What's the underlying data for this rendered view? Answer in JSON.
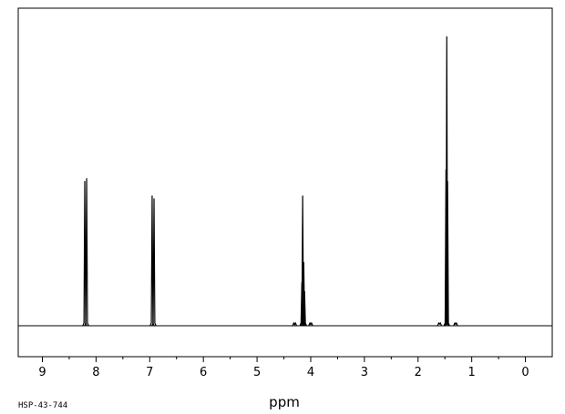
{
  "chart_data": {
    "type": "line",
    "title": "",
    "xlabel": "ppm",
    "ylabel": "",
    "x_reversed": true,
    "xlim": [
      9.45,
      -0.5
    ],
    "xticks": [
      "9",
      "8",
      "7",
      "6",
      "5",
      "4",
      "3",
      "2",
      "1",
      "0"
    ],
    "minor_tick_step": 0.5,
    "grid": false,
    "legend": "none",
    "baseline_intensity": 0,
    "ylim": [
      -0.11,
      1.0
    ],
    "peaks": [
      {
        "ppm": 8.21,
        "intensity": 0.5,
        "label": "doublet"
      },
      {
        "ppm": 8.175,
        "intensity": 0.51,
        "label": "doublet"
      },
      {
        "ppm": 6.955,
        "intensity": 0.45,
        "label": "doublet"
      },
      {
        "ppm": 6.92,
        "intensity": 0.44,
        "label": "doublet"
      },
      {
        "ppm": 4.165,
        "intensity": 0.15,
        "label": "quartet"
      },
      {
        "ppm": 4.15,
        "intensity": 0.45,
        "label": "quartet"
      },
      {
        "ppm": 4.13,
        "intensity": 0.22,
        "label": "quartet"
      },
      {
        "ppm": 4.115,
        "intensity": 0.12,
        "label": "quartet"
      },
      {
        "ppm": 1.48,
        "intensity": 0.54,
        "label": "triplet"
      },
      {
        "ppm": 1.465,
        "intensity": 1.0,
        "label": "triplet"
      },
      {
        "ppm": 1.45,
        "intensity": 0.5,
        "label": "triplet"
      }
    ],
    "impurity_peaks": [
      {
        "ppm": 4.3,
        "intensity": 0.004
      },
      {
        "ppm": 4.0,
        "intensity": 0.004
      },
      {
        "ppm": 1.6,
        "intensity": 0.006
      },
      {
        "ppm": 1.3,
        "intensity": 0.005
      }
    ],
    "colors": {
      "trace": "#000000",
      "frame": "#000000",
      "background": "#ffffff"
    }
  },
  "footer": {
    "sample_id": "HSP-43-744"
  }
}
